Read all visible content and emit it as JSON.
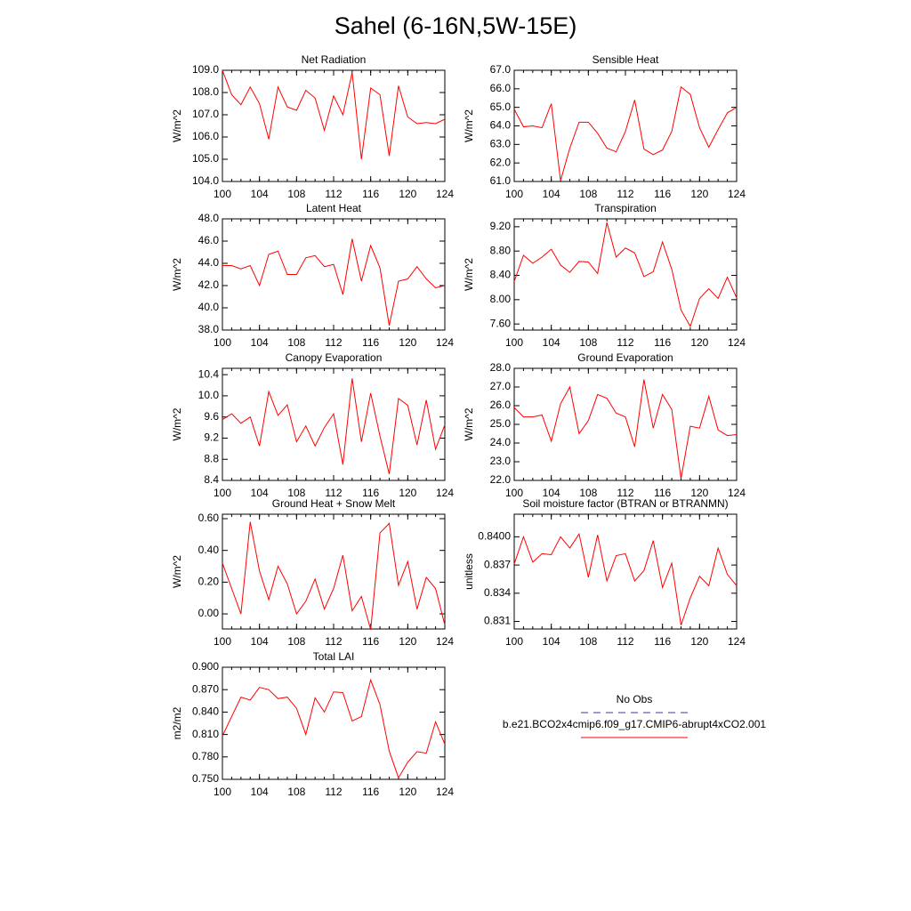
{
  "title": "Sahel (6-16N,5W-15E)",
  "legend": [
    {
      "name": "No Obs",
      "color": "#3a3a9a",
      "dash": true
    },
    {
      "name": "b.e21.BCO2x4cmip6.f09_g17.CMIP6-abrupt4xCO2.001",
      "color": "#ff0000",
      "dash": false
    }
  ],
  "chart_data": [
    {
      "type": "line",
      "title": "Net Radiation",
      "y_label": "W/m^2",
      "color": "#ff0000",
      "x": [
        100,
        101,
        102,
        103,
        104,
        105,
        106,
        107,
        108,
        109,
        110,
        111,
        112,
        113,
        114,
        115,
        116,
        117,
        118,
        119,
        120,
        121,
        122,
        123,
        124
      ],
      "values": [
        109.0,
        107.9,
        107.45,
        108.25,
        107.5,
        105.9,
        108.25,
        107.35,
        107.2,
        108.1,
        107.75,
        106.3,
        107.85,
        107.0,
        108.9,
        105.0,
        108.2,
        107.9,
        105.15,
        108.3,
        106.9,
        106.6,
        106.65,
        106.6,
        106.8
      ],
      "xlim": [
        100,
        124
      ],
      "xticks": [
        100,
        104,
        108,
        112,
        116,
        120,
        124
      ],
      "ylim": [
        104,
        109
      ],
      "yticks": [
        {
          "value": 104,
          "label": "104.0"
        },
        {
          "value": 105,
          "label": "105.0"
        },
        {
          "value": 106,
          "label": "106.0"
        },
        {
          "value": 107,
          "label": "107.0"
        },
        {
          "value": 108,
          "label": "108.0"
        },
        {
          "value": 109,
          "label": "109.0"
        }
      ]
    },
    {
      "type": "line",
      "title": "Sensible Heat",
      "y_label": "W/m^2",
      "color": "#ff0000",
      "x": [
        100,
        101,
        102,
        103,
        104,
        105,
        106,
        107,
        108,
        109,
        110,
        111,
        112,
        113,
        114,
        115,
        116,
        117,
        118,
        119,
        120,
        121,
        122,
        123,
        124
      ],
      "values": [
        64.9,
        63.95,
        64.0,
        63.9,
        65.2,
        61.05,
        62.8,
        64.2,
        64.2,
        63.6,
        62.8,
        62.6,
        63.7,
        65.4,
        62.75,
        62.45,
        62.7,
        63.7,
        66.1,
        65.7,
        63.9,
        62.85,
        63.8,
        64.7,
        65.0
      ],
      "xlim": [
        100,
        124
      ],
      "xticks": [
        100,
        104,
        108,
        112,
        116,
        120,
        124
      ],
      "ylim": [
        61,
        67
      ],
      "yticks": [
        {
          "value": 61,
          "label": "61.0"
        },
        {
          "value": 62,
          "label": "62.0"
        },
        {
          "value": 63,
          "label": "63.0"
        },
        {
          "value": 64,
          "label": "64.0"
        },
        {
          "value": 65,
          "label": "65.0"
        },
        {
          "value": 66,
          "label": "66.0"
        },
        {
          "value": 67,
          "label": "67.0"
        }
      ]
    },
    {
      "type": "line",
      "title": "Latent Heat",
      "y_label": "W/m^2",
      "color": "#ff0000",
      "x": [
        100,
        101,
        102,
        103,
        104,
        105,
        106,
        107,
        108,
        109,
        110,
        111,
        112,
        113,
        114,
        115,
        116,
        117,
        118,
        119,
        120,
        121,
        122,
        123,
        124
      ],
      "values": [
        43.8,
        43.8,
        43.5,
        43.8,
        42.0,
        44.8,
        45.1,
        43.0,
        43.0,
        44.5,
        44.7,
        43.7,
        43.9,
        41.2,
        46.2,
        42.4,
        45.6,
        43.6,
        38.4,
        42.4,
        42.6,
        43.7,
        42.6,
        41.8,
        42.0
      ],
      "xlim": [
        100,
        124
      ],
      "xticks": [
        100,
        104,
        108,
        112,
        116,
        120,
        124
      ],
      "ylim": [
        38,
        48
      ],
      "yticks": [
        {
          "value": 38,
          "label": "38.0"
        },
        {
          "value": 40,
          "label": "40.0"
        },
        {
          "value": 42,
          "label": "42.0"
        },
        {
          "value": 44,
          "label": "44.0"
        },
        {
          "value": 46,
          "label": "46.0"
        },
        {
          "value": 48,
          "label": "48.0"
        }
      ]
    },
    {
      "type": "line",
      "title": "Transpiration",
      "y_label": "W/m^2",
      "color": "#ff0000",
      "x": [
        100,
        101,
        102,
        103,
        104,
        105,
        106,
        107,
        108,
        109,
        110,
        111,
        112,
        113,
        114,
        115,
        116,
        117,
        118,
        119,
        120,
        121,
        122,
        123,
        124
      ],
      "values": [
        8.3,
        8.73,
        8.6,
        8.7,
        8.83,
        8.57,
        8.45,
        8.63,
        8.62,
        8.43,
        9.27,
        8.7,
        8.85,
        8.77,
        8.38,
        8.46,
        8.95,
        8.5,
        7.83,
        7.56,
        8.02,
        8.18,
        8.02,
        8.37,
        8.03
      ],
      "xlim": [
        100,
        124
      ],
      "xticks": [
        100,
        104,
        108,
        112,
        116,
        120,
        124
      ],
      "ylim": [
        7.5,
        9.33
      ],
      "yticks": [
        {
          "value": 7.6,
          "label": "7.60"
        },
        {
          "value": 8.0,
          "label": "8.00"
        },
        {
          "value": 8.4,
          "label": "8.40"
        },
        {
          "value": 8.8,
          "label": "8.80"
        },
        {
          "value": 9.2,
          "label": "9.20"
        }
      ]
    },
    {
      "type": "line",
      "title": "Canopy Evaporation",
      "y_label": "W/m^2",
      "color": "#ff0000",
      "x": [
        100,
        101,
        102,
        103,
        104,
        105,
        106,
        107,
        108,
        109,
        110,
        111,
        112,
        113,
        114,
        115,
        116,
        117,
        118,
        119,
        120,
        121,
        122,
        123,
        124
      ],
      "values": [
        9.55,
        9.66,
        9.48,
        9.6,
        9.05,
        10.08,
        9.63,
        9.83,
        9.13,
        9.43,
        9.05,
        9.4,
        9.66,
        8.7,
        10.33,
        9.13,
        10.05,
        9.24,
        8.52,
        9.95,
        9.82,
        9.07,
        9.92,
        8.99,
        9.45
      ],
      "xlim": [
        100,
        124
      ],
      "xticks": [
        100,
        104,
        108,
        112,
        116,
        120,
        124
      ],
      "ylim": [
        8.4,
        10.52
      ],
      "yticks": [
        8.4,
        8.8,
        9.2,
        9.6,
        {
          "value": 10,
          "label": "10.0"
        },
        10.4
      ]
    },
    {
      "type": "line",
      "title": "Ground Evaporation",
      "y_label": "W/m^2",
      "color": "#ff0000",
      "x": [
        100,
        101,
        102,
        103,
        104,
        105,
        106,
        107,
        108,
        109,
        110,
        111,
        112,
        113,
        114,
        115,
        116,
        117,
        118,
        119,
        120,
        121,
        122,
        123,
        124
      ],
      "values": [
        25.9,
        25.4,
        25.4,
        25.5,
        24.1,
        26.1,
        27.0,
        24.5,
        25.2,
        26.6,
        26.4,
        25.6,
        25.4,
        23.8,
        27.4,
        24.8,
        26.6,
        25.8,
        22.1,
        24.9,
        24.8,
        26.5,
        24.7,
        24.4,
        24.45
      ],
      "xlim": [
        100,
        124
      ],
      "xticks": [
        100,
        104,
        108,
        112,
        116,
        120,
        124
      ],
      "ylim": [
        22,
        28
      ],
      "yticks": [
        {
          "value": 22,
          "label": "22.0"
        },
        {
          "value": 23,
          "label": "23.0"
        },
        {
          "value": 24,
          "label": "24.0"
        },
        {
          "value": 25,
          "label": "25.0"
        },
        {
          "value": 26,
          "label": "26.0"
        },
        {
          "value": 27,
          "label": "27.0"
        },
        {
          "value": 28,
          "label": "28.0"
        }
      ]
    },
    {
      "type": "line",
      "title": "Ground Heat + Snow Melt",
      "y_label": "W/m^2",
      "color": "#ff0000",
      "x": [
        100,
        101,
        102,
        103,
        104,
        105,
        106,
        107,
        108,
        109,
        110,
        111,
        112,
        113,
        114,
        115,
        116,
        117,
        118,
        119,
        120,
        121,
        122,
        123,
        124
      ],
      "values": [
        0.32,
        0.16,
        0.0,
        0.58,
        0.27,
        0.09,
        0.3,
        0.19,
        0.0,
        0.08,
        0.22,
        0.03,
        0.16,
        0.37,
        0.02,
        0.11,
        -0.1,
        0.51,
        0.57,
        0.18,
        0.33,
        0.03,
        0.23,
        0.16,
        -0.07
      ],
      "xlim": [
        100,
        124
      ],
      "xticks": [
        100,
        104,
        108,
        112,
        116,
        120,
        124
      ],
      "ylim": [
        -0.095,
        0.628
      ],
      "yticks": [
        {
          "value": 0,
          "label": "0.00"
        },
        {
          "value": 0.2,
          "label": "0.20"
        },
        {
          "value": 0.4,
          "label": "0.40"
        },
        {
          "value": 0.6,
          "label": "0.60"
        }
      ]
    },
    {
      "type": "line",
      "title": "Soil moisture factor (BTRAN or BTRANMN)",
      "y_label": "unitless",
      "color": "#ff0000",
      "x": [
        100,
        101,
        102,
        103,
        104,
        105,
        106,
        107,
        108,
        109,
        110,
        111,
        112,
        113,
        114,
        115,
        116,
        117,
        118,
        119,
        120,
        121,
        122,
        123,
        124
      ],
      "values": [
        0.8371,
        0.84,
        0.8373,
        0.8382,
        0.8381,
        0.84,
        0.8388,
        0.8403,
        0.8357,
        0.8402,
        0.8353,
        0.838,
        0.8382,
        0.8353,
        0.8364,
        0.8396,
        0.8346,
        0.8372,
        0.8306,
        0.8335,
        0.8358,
        0.8348,
        0.8388,
        0.836,
        0.8348
      ],
      "xlim": [
        100,
        124
      ],
      "xticks": [
        100,
        104,
        108,
        112,
        116,
        120,
        124
      ],
      "ylim": [
        0.8302,
        0.8424
      ],
      "yticks": [
        0.831,
        0.834,
        0.837,
        {
          "value": 0.84,
          "label": "0.8400"
        }
      ]
    },
    {
      "type": "line",
      "title": "Total LAI",
      "y_label": "m2/m2",
      "color": "#ff0000",
      "x": [
        100,
        101,
        102,
        103,
        104,
        105,
        106,
        107,
        108,
        109,
        110,
        111,
        112,
        113,
        114,
        115,
        116,
        117,
        118,
        119,
        120,
        121,
        122,
        123,
        124
      ],
      "values": [
        0.808,
        0.834,
        0.86,
        0.856,
        0.873,
        0.87,
        0.858,
        0.86,
        0.845,
        0.81,
        0.859,
        0.84,
        0.867,
        0.866,
        0.828,
        0.834,
        0.883,
        0.85,
        0.788,
        0.752,
        0.773,
        0.787,
        0.785,
        0.827,
        0.797
      ],
      "xlim": [
        100,
        124
      ],
      "xticks": [
        100,
        104,
        108,
        112,
        116,
        120,
        124
      ],
      "ylim": [
        0.75,
        0.9
      ],
      "yticks": [
        {
          "value": 0.75,
          "label": "0.750"
        },
        {
          "value": 0.78,
          "label": "0.780"
        },
        {
          "value": 0.81,
          "label": "0.810"
        },
        {
          "value": 0.84,
          "label": "0.840"
        },
        {
          "value": 0.87,
          "label": "0.870"
        },
        {
          "value": 0.9,
          "label": "0.900"
        }
      ]
    }
  ]
}
